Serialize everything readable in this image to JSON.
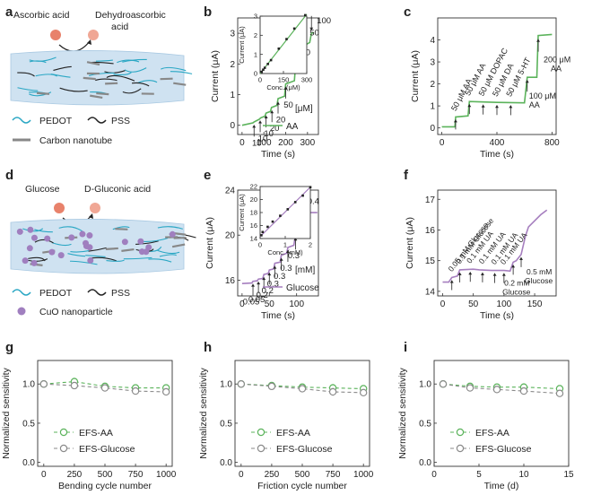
{
  "panel_labels": [
    "a",
    "b",
    "c",
    "d",
    "e",
    "f",
    "g",
    "h",
    "i"
  ],
  "panel_a": {
    "reactant": "Ascorbic acid",
    "product_line1": "Dehydroascorbic",
    "product_line2": "acid",
    "legend": [
      "PEDOT",
      "PSS",
      "Carbon nanotube"
    ],
    "colors": {
      "pedot": "#2aa7c4",
      "pss": "#222222",
      "cnt": "#888888",
      "film": "#cfe2f1",
      "ball": "#e8826b"
    }
  },
  "panel_d": {
    "reactant": "Glucose",
    "product": "D-Gluconic acid",
    "legend": [
      "PEDOT",
      "PSS",
      "CuO nanoparticle"
    ],
    "colors": {
      "np": "#a07fbf"
    }
  },
  "colors": {
    "green": "#5bb35b",
    "purple": "#a67fbf",
    "gray": "#8a8a8a"
  },
  "chart_data": [
    {
      "id": "b",
      "type": "line",
      "xlabel": "Time (s)",
      "ylabel": "Current (μA)",
      "xlim": [
        -20,
        350
      ],
      "ylim": [
        -0.3,
        3.5
      ],
      "xticks": [
        0,
        100,
        200,
        300
      ],
      "yticks": [
        0,
        1,
        2,
        3
      ],
      "legend": "AA",
      "legend_title": "[μM]",
      "series": [
        {
          "name": "AA",
          "color": "#5bb35b",
          "points": [
            [
              0,
              0
            ],
            [
              50,
              0.08
            ],
            [
              55,
              0.11
            ],
            [
              80,
              0.2
            ],
            [
              85,
              0.24
            ],
            [
              105,
              0.3
            ],
            [
              110,
              0.4
            ],
            [
              130,
              0.45
            ],
            [
              135,
              0.58
            ],
            [
              160,
              0.65
            ],
            [
              165,
              0.87
            ],
            [
              195,
              0.95
            ],
            [
              200,
              1.35
            ],
            [
              240,
              1.45
            ],
            [
              245,
              1.95
            ],
            [
              280,
              2.05
            ],
            [
              285,
              2.6
            ],
            [
              310,
              2.7
            ],
            [
              318,
              3.0
            ],
            [
              330,
              3.02
            ]
          ]
        }
      ],
      "annotations": [
        {
          "text": "10",
          "x": 55,
          "y": 0.1
        },
        {
          "text": "10",
          "x": 83,
          "y": 0.24
        },
        {
          "text": "10",
          "x": 110,
          "y": 0.4
        },
        {
          "text": "20",
          "x": 137,
          "y": 0.57
        },
        {
          "text": "20",
          "x": 165,
          "y": 0.85
        },
        {
          "text": "50",
          "x": 200,
          "y": 1.34
        },
        {
          "text": "50",
          "x": 245,
          "y": 1.93
        },
        {
          "text": "50",
          "x": 285,
          "y": 2.58
        },
        {
          "text": "100",
          "x": 318,
          "y": 2.98
        }
      ],
      "inset": {
        "xlabel": "Conc. (μM)",
        "ylabel": "Current (μA)",
        "xlim": [
          0,
          300
        ],
        "ylim": [
          0,
          3
        ],
        "xticks": [
          0,
          150,
          300
        ],
        "yticks": [
          0,
          1,
          2,
          3
        ],
        "points": [
          [
            10,
            0.09
          ],
          [
            20,
            0.2
          ],
          [
            30,
            0.3
          ],
          [
            50,
            0.5
          ],
          [
            70,
            0.7
          ],
          [
            120,
            1.3
          ],
          [
            170,
            1.8
          ],
          [
            220,
            2.35
          ],
          [
            290,
            3.05
          ]
        ],
        "fit": [
          [
            0,
            0
          ],
          [
            300,
            3.1
          ]
        ]
      }
    },
    {
      "id": "c",
      "type": "line",
      "xlabel": "Time (s)",
      "ylabel": "Current (μA)",
      "xlim": [
        -30,
        830
      ],
      "ylim": [
        -0.3,
        5
      ],
      "xticks": [
        0,
        400,
        800
      ],
      "yticks": [
        0,
        1,
        2,
        3,
        4
      ],
      "series": [
        {
          "name": "",
          "color": "#5bb35b",
          "points": [
            [
              0,
              0.05
            ],
            [
              95,
              0.05
            ],
            [
              100,
              0.5
            ],
            [
              190,
              0.55
            ],
            [
              200,
              1.2
            ],
            [
              300,
              1.18
            ],
            [
              400,
              1.16
            ],
            [
              500,
              1.15
            ],
            [
              600,
              1.14
            ],
            [
              620,
              2.3
            ],
            [
              690,
              2.3
            ],
            [
              700,
              4.2
            ],
            [
              800,
              4.25
            ]
          ]
        }
      ],
      "annotations": [
        {
          "text": "50 μM AA",
          "x": 100,
          "y": 0.5
        },
        {
          "text": "50 μM AA",
          "x": 200,
          "y": 1.2
        },
        {
          "text": "50 μM DOPAC",
          "x": 300,
          "y": 1.18
        },
        {
          "text": "50 μM DA",
          "x": 400,
          "y": 1.16
        },
        {
          "text": "50 μM 5-HT",
          "x": 500,
          "y": 1.15
        },
        {
          "text": "100 μM AA",
          "x": 620,
          "y": 2.3
        },
        {
          "text": "200 μM AA",
          "x": 700,
          "y": 4.2
        }
      ]
    },
    {
      "id": "e",
      "type": "line",
      "xlabel": "Time (s)",
      "ylabel": "Current (μA)",
      "xlim": [
        -8,
        140
      ],
      "ylim": [
        14.6,
        24
      ],
      "xticks": [
        0,
        50,
        100
      ],
      "yticks": [
        16,
        20,
        24
      ],
      "legend": "Glucose",
      "legend_title": "[mM]",
      "series": [
        {
          "name": "Glucose",
          "color": "#a67fbf",
          "points": [
            [
              0,
              15.7
            ],
            [
              18,
              15.75
            ],
            [
              20,
              15.9
            ],
            [
              28,
              15.95
            ],
            [
              30,
              16.1
            ],
            [
              38,
              16.15
            ],
            [
              40,
              16.5
            ],
            [
              48,
              16.6
            ],
            [
              50,
              16.9
            ],
            [
              58,
              17.0
            ],
            [
              60,
              17.5
            ],
            [
              70,
              17.6
            ],
            [
              72,
              18.2
            ],
            [
              82,
              18.4
            ],
            [
              84,
              18.9
            ],
            [
              95,
              19.1
            ],
            [
              98,
              20.0
            ],
            [
              105,
              20.3
            ],
            [
              110,
              21.8
            ],
            [
              115,
              22.0
            ],
            [
              138,
              22.0
            ]
          ]
        }
      ],
      "annotations": [
        {
          "text": "0.05",
          "x": 20,
          "y": 15.9
        },
        {
          "text": "0.05",
          "x": 30,
          "y": 16.1
        },
        {
          "text": "0.2",
          "x": 40,
          "y": 16.5
        },
        {
          "text": "0.2",
          "x": 50,
          "y": 16.9
        },
        {
          "text": "0.3",
          "x": 60,
          "y": 17.5
        },
        {
          "text": "0.3",
          "x": 72,
          "y": 18.2
        },
        {
          "text": "0.3",
          "x": 84,
          "y": 18.9
        },
        {
          "text": "0.3",
          "x": 98,
          "y": 20.0
        },
        {
          "text": "0.4",
          "x": 110,
          "y": 21.8
        }
      ],
      "inset": {
        "xlabel": "Conc. (mM)",
        "ylabel": "Current (μA)",
        "xlim": [
          0,
          2
        ],
        "ylim": [
          14,
          22
        ],
        "xticks": [
          0,
          1,
          2
        ],
        "yticks": [
          14,
          16,
          18,
          20,
          22
        ],
        "points": [
          [
            0.05,
            14.5
          ],
          [
            0.1,
            15.0
          ],
          [
            0.3,
            15.8
          ],
          [
            0.5,
            16.6
          ],
          [
            0.8,
            17.5
          ],
          [
            1.1,
            18.5
          ],
          [
            1.4,
            19.6
          ],
          [
            1.7,
            20.6
          ],
          [
            2.0,
            21.9
          ]
        ],
        "fit": [
          [
            0,
            14.3
          ],
          [
            2.0,
            21.9
          ]
        ]
      }
    },
    {
      "id": "f",
      "type": "line",
      "xlabel": "Time (s)",
      "ylabel": "Current (μA)",
      "xlim": [
        -8,
        185
      ],
      "ylim": [
        13.85,
        17.3
      ],
      "xticks": [
        0,
        50,
        100,
        150
      ],
      "yticks": [
        14,
        15,
        16,
        17
      ],
      "series": [
        {
          "name": "",
          "color": "#a67fbf",
          "points": [
            [
              0,
              14.3
            ],
            [
              10,
              14.3
            ],
            [
              15,
              14.45
            ],
            [
              24,
              14.5
            ],
            [
              28,
              14.7
            ],
            [
              50,
              14.72
            ],
            [
              60,
              14.7
            ],
            [
              80,
              14.68
            ],
            [
              100,
              14.68
            ],
            [
              110,
              14.66
            ],
            [
              115,
              14.95
            ],
            [
              120,
              15.0
            ],
            [
              128,
              15.2
            ],
            [
              135,
              15.8
            ],
            [
              140,
              16.1
            ],
            [
              160,
              16.5
            ],
            [
              170,
              16.65
            ]
          ]
        }
      ],
      "annotations": [
        {
          "text": "0.05 mM Glucose",
          "x": 15,
          "y": 14.45
        },
        {
          "text": "0.1 mM Glucose",
          "x": 28,
          "y": 14.7
        },
        {
          "text": "0.1 mM UA",
          "x": 45,
          "y": 14.72
        },
        {
          "text": "0.1 mM UA",
          "x": 65,
          "y": 14.7
        },
        {
          "text": "0.1 mM UA",
          "x": 85,
          "y": 14.68
        },
        {
          "text": "0.1 mM UA",
          "x": 100,
          "y": 14.68
        },
        {
          "text": "0.2 mM Glucose",
          "x": 115,
          "y": 14.95
        },
        {
          "text": "0.5 mM Glucose",
          "x": 128,
          "y": 15.2
        }
      ]
    },
    {
      "id": "g",
      "type": "line",
      "xlabel": "Bending cycle number",
      "ylabel": "Normalized sensitivity",
      "xlim": [
        -50,
        1050
      ],
      "ylim": [
        -0.05,
        1.3
      ],
      "xticks": [
        0,
        250,
        500,
        750,
        1000
      ],
      "yticks": [
        0.0,
        0.5,
        1.0
      ],
      "series": [
        {
          "name": "EFS-AA",
          "color": "#5bb35b",
          "x": [
            0,
            250,
            500,
            750,
            1000
          ],
          "y": [
            1.0,
            1.03,
            0.97,
            0.95,
            0.95
          ],
          "err": [
            0.02,
            0.05,
            0.03,
            0.03,
            0.04
          ]
        },
        {
          "name": "EFS-Glucose",
          "color": "#8a8a8a",
          "x": [
            0,
            250,
            500,
            750,
            1000
          ],
          "y": [
            1.0,
            0.98,
            0.95,
            0.91,
            0.9
          ],
          "err": [
            0.02,
            0.04,
            0.03,
            0.04,
            0.04
          ]
        }
      ]
    },
    {
      "id": "h",
      "type": "line",
      "xlabel": "Friction cycle number",
      "ylabel": "Normalized sensitivity",
      "xlim": [
        -50,
        1050
      ],
      "ylim": [
        -0.05,
        1.3
      ],
      "xticks": [
        0,
        250,
        500,
        750,
        1000
      ],
      "yticks": [
        0.0,
        0.5,
        1.0
      ],
      "series": [
        {
          "name": "EFS-AA",
          "color": "#5bb35b",
          "x": [
            0,
            250,
            500,
            750,
            1000
          ],
          "y": [
            1.0,
            0.98,
            0.96,
            0.95,
            0.94
          ],
          "err": [
            0.02,
            0.03,
            0.03,
            0.05,
            0.04
          ]
        },
        {
          "name": "EFS-Glucose",
          "color": "#8a8a8a",
          "x": [
            0,
            250,
            500,
            750,
            1000
          ],
          "y": [
            1.0,
            0.97,
            0.94,
            0.9,
            0.89
          ],
          "err": [
            0.02,
            0.04,
            0.04,
            0.05,
            0.04
          ]
        }
      ]
    },
    {
      "id": "i",
      "type": "line",
      "xlabel": "Time (d)",
      "ylabel": "Normalized sensitivity",
      "xlim": [
        0,
        15
      ],
      "ylim": [
        -0.05,
        1.3
      ],
      "xticks": [
        0,
        5,
        10,
        15
      ],
      "yticks": [
        0.0,
        0.5,
        1.0
      ],
      "series": [
        {
          "name": "EFS-AA",
          "color": "#5bb35b",
          "x": [
            1,
            4,
            7,
            10,
            14
          ],
          "y": [
            1.0,
            0.97,
            0.96,
            0.96,
            0.94
          ],
          "err": [
            0.02,
            0.04,
            0.03,
            0.05,
            0.03
          ]
        },
        {
          "name": "EFS-Glucose",
          "color": "#8a8a8a",
          "x": [
            1,
            4,
            7,
            10,
            14
          ],
          "y": [
            1.0,
            0.95,
            0.93,
            0.91,
            0.88
          ],
          "err": [
            0.02,
            0.04,
            0.04,
            0.04,
            0.04
          ]
        }
      ]
    }
  ]
}
